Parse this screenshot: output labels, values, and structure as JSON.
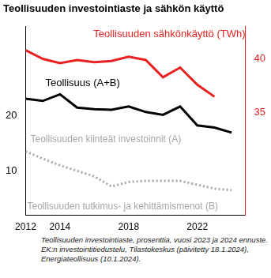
{
  "chart_data": {
    "type": "line",
    "title": "Teollisuuden investointiaste ja sähkön käyttö",
    "notes": [
      "Teollisuuden investointiaste, prosenttia, vuosi 2023 ja 2024 ennuste.",
      "EK:n investointitiedustelu, Tilastokeskus (päivitetty 18.1.2024),",
      "Energiateollisuus (10.1.2024)."
    ],
    "annotations": [
      "Teollisuuden tutkimus- ja kehittämismenot (B)"
    ],
    "x": [
      2012,
      2013,
      2014,
      2015,
      2016,
      2017,
      2018,
      2019,
      2020,
      2021,
      2022,
      2023,
      2024
    ],
    "xlim": [
      2012,
      2024.8
    ],
    "xticks": [
      2012,
      2014,
      2018,
      2022
    ],
    "ylim": [
      2,
      36
    ],
    "yticks": [
      10,
      20
    ],
    "y2lim": [
      25.5,
      43
    ],
    "y2ticks": [
      35,
      40
    ],
    "grid": false,
    "series": [
      {
        "name": "Teollisuuden sähkönkäyttö (TWh)",
        "color": "#e8201f",
        "axis": "y2",
        "values": [
          40.8,
          40.0,
          39.6,
          39.9,
          39.7,
          39.8,
          40.2,
          39.9,
          38.3,
          39.2,
          37.6,
          36.5,
          null
        ]
      },
      {
        "name": "Teollisuus (A+B)",
        "color": "#000000",
        "values": [
          23.0,
          22.6,
          23.8,
          21.4,
          21.1,
          21.0,
          21.6,
          20.6,
          20.1,
          21.6,
          18.2,
          17.8,
          16.9
        ]
      },
      {
        "name": "Teollisuuden kiinteät investoinnit (A)",
        "color": "#a6a6a6",
        "line_style": "dotted",
        "values": [
          13.5,
          12.2,
          11.0,
          10.0,
          9.0,
          7.2,
          8.0,
          8.2,
          8.2,
          8.2,
          7.5,
          6.8,
          6.5
        ]
      }
    ]
  }
}
